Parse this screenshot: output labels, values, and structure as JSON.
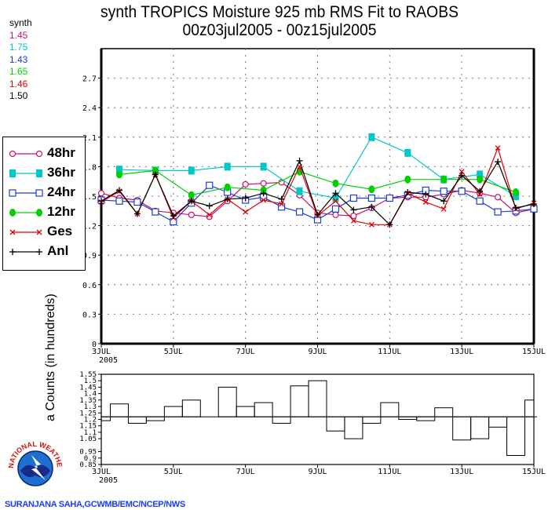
{
  "chart_data": [
    {
      "type": "line",
      "title": "synth TROPICS Moisture 925 mb RMS Fit to RAOBS",
      "subtitle": "00z03jul2005 - 00z15jul2005",
      "xlabel": "",
      "ylabel": "",
      "x_ticks": [
        "3JUL",
        "5JUL",
        "7JUL",
        "9JUL",
        "11JUL",
        "13JUL",
        "15JUL"
      ],
      "x_year_label": "2005",
      "xlim_days": [
        0,
        12
      ],
      "y_ticks": [
        "0",
        "0.3",
        "0.6",
        "0.9",
        "1.2",
        "1.5",
        "1.8",
        "2.1",
        "2.4",
        "2.7"
      ],
      "ylim": [
        0,
        3.0
      ],
      "grid": true,
      "legend_position": "left",
      "summary_label": "synth",
      "series": [
        {
          "name": "48hr",
          "color": "#c8106e",
          "marker": "open-circle",
          "mean": "1.45",
          "x": [
            0,
            0.5,
            1,
            1.5,
            2,
            2.5,
            3,
            3.5,
            4,
            4.5,
            5,
            5.5,
            6,
            6.5,
            7,
            7.5,
            8,
            8.5,
            9,
            9.5,
            10,
            10.5,
            11,
            11.5,
            12
          ],
          "y": [
            1.53,
            1.48,
            1.46,
            1.35,
            1.33,
            1.31,
            1.29,
            1.45,
            1.62,
            1.63,
            1.64,
            1.51,
            1.33,
            1.31,
            1.3,
            1.38,
            1.48,
            1.49,
            1.49,
            1.52,
            1.56,
            1.53,
            1.49,
            1.33,
            1.37
          ]
        },
        {
          "name": "36hr",
          "color": "#00c8c8",
          "marker": "filled-square",
          "mean": "1.75",
          "x": [
            0.5,
            1.5,
            2.5,
            3.5,
            4.5,
            5.5,
            6.5,
            7.5,
            8.5,
            9.5,
            10.5,
            11.5
          ],
          "y": [
            1.77,
            1.76,
            1.76,
            1.8,
            1.8,
            1.55,
            1.48,
            2.1,
            1.94,
            1.67,
            1.72,
            1.5
          ]
        },
        {
          "name": "24hr",
          "color": "#1a3cd8",
          "marker": "open-square",
          "mean": "1.43",
          "x": [
            0,
            0.5,
            1,
            1.5,
            2,
            2.5,
            3,
            3.5,
            4,
            4.5,
            5,
            5.5,
            6,
            6.5,
            7,
            7.5,
            8,
            8.5,
            9,
            9.5,
            10,
            10.5,
            11,
            11.5,
            12
          ],
          "y": [
            1.46,
            1.45,
            1.44,
            1.34,
            1.24,
            1.43,
            1.61,
            1.54,
            1.46,
            1.49,
            1.39,
            1.34,
            1.26,
            1.37,
            1.48,
            1.48,
            1.48,
            1.51,
            1.56,
            1.55,
            1.55,
            1.45,
            1.34,
            1.35,
            1.37
          ]
        },
        {
          "name": "12hr",
          "color": "#00d000",
          "marker": "filled-circle",
          "mean": "1.65",
          "x": [
            0.5,
            1.5,
            2.5,
            3.5,
            4.5,
            5.5,
            6.5,
            7.5,
            8.5,
            9.5,
            10.5,
            11.5
          ],
          "y": [
            1.72,
            1.76,
            1.51,
            1.59,
            1.56,
            1.75,
            1.63,
            1.57,
            1.67,
            1.67,
            1.67,
            1.54
          ]
        },
        {
          "name": "Ges",
          "color": "#e00000",
          "marker": "x",
          "mean": "1.46",
          "x": [
            0,
            0.5,
            1,
            1.5,
            2,
            2.5,
            3,
            3.5,
            4,
            4.5,
            5,
            5.5,
            6,
            6.5,
            7,
            7.5,
            8,
            8.5,
            9,
            9.5,
            10,
            10.5,
            11,
            11.5,
            12
          ],
          "y": [
            1.44,
            1.55,
            1.32,
            1.72,
            1.28,
            1.45,
            1.31,
            1.47,
            1.34,
            1.46,
            1.42,
            1.8,
            1.3,
            1.45,
            1.25,
            1.21,
            1.21,
            1.53,
            1.44,
            1.37,
            1.75,
            1.52,
            1.99,
            1.37,
            1.43
          ]
        },
        {
          "name": "Anl",
          "color": "#000000",
          "marker": "plus",
          "mean": "1.50",
          "x": [
            0,
            0.5,
            1,
            1.5,
            2,
            2.5,
            3,
            3.5,
            4,
            4.5,
            5,
            5.5,
            6,
            6.5,
            7,
            7.5,
            8,
            8.5,
            9,
            9.5,
            10,
            10.5,
            11,
            11.5,
            12
          ],
          "y": [
            1.45,
            1.56,
            1.32,
            1.72,
            1.3,
            1.45,
            1.4,
            1.47,
            1.48,
            1.53,
            1.47,
            1.86,
            1.31,
            1.53,
            1.36,
            1.39,
            1.21,
            1.54,
            1.52,
            1.45,
            1.71,
            1.55,
            1.85,
            1.38,
            1.42
          ]
        }
      ]
    },
    {
      "type": "bar",
      "title": "",
      "ylabel": "a Counts (in hundreds)",
      "y_ticks": [
        "0.85",
        "0.9",
        "0.95",
        "1.05",
        "1.1",
        "1.15",
        "1.2",
        "1.25",
        "1.3",
        "1.35",
        "1.4",
        "1.45",
        "1.5",
        "1.55"
      ],
      "ylim": [
        0.85,
        1.55
      ],
      "baseline": 1.22,
      "x_ticks": [
        "3JUL",
        "5JUL",
        "7JUL",
        "9JUL",
        "11JUL",
        "13JUL",
        "15JUL"
      ],
      "x_year_label": "2005",
      "x": [
        0,
        0.5,
        1,
        1.5,
        2,
        2.5,
        3,
        3.5,
        4,
        4.5,
        5,
        5.5,
        6,
        6.5,
        7,
        7.5,
        8,
        8.5,
        9,
        9.5,
        10,
        10.5,
        11,
        11.5,
        12
      ],
      "values": [
        1.19,
        1.32,
        1.17,
        1.19,
        1.3,
        1.35,
        1.22,
        1.45,
        1.3,
        1.33,
        1.17,
        1.46,
        1.5,
        1.11,
        1.05,
        1.17,
        1.33,
        1.2,
        1.19,
        1.29,
        1.04,
        1.05,
        1.14,
        0.92,
        1.35
      ]
    }
  ],
  "footer": {
    "credit": "SURANJANA SAHA,GCWMB/EMC/NCEP/NWS",
    "logo_text": "NATIONAL WEATHER SERVICE"
  }
}
